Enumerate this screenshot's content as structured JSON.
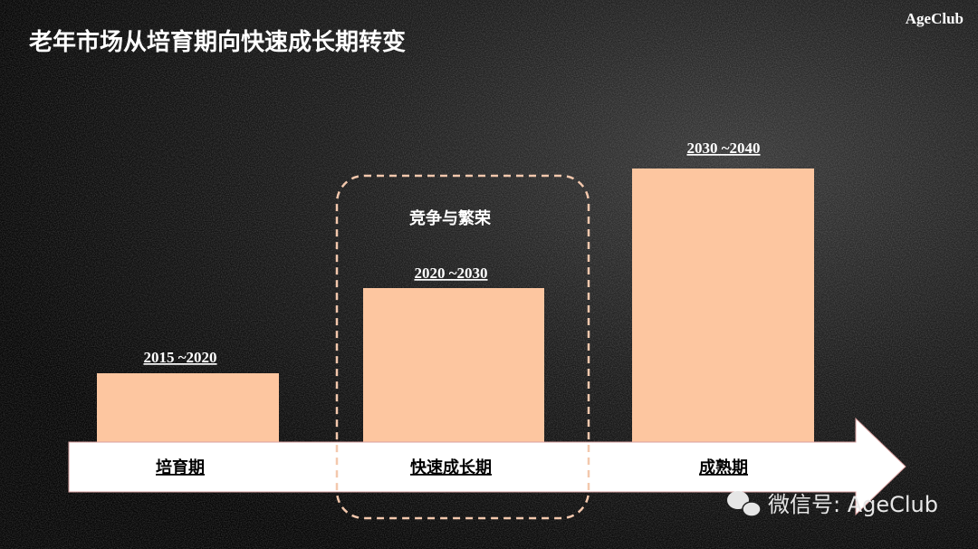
{
  "header": {
    "title": "老年市场从培育期向快速成长期转变",
    "brand": "AgeClub"
  },
  "stages": [
    {
      "period": "2015 ~2020",
      "label": "培育期"
    },
    {
      "period": "2020 ~2030",
      "label": "快速成长期"
    },
    {
      "period": "2030 ~2040",
      "label": "成熟期"
    }
  ],
  "highlight": {
    "label": "竞争与繁荣"
  },
  "watermark": "微信号: AgeClub"
}
